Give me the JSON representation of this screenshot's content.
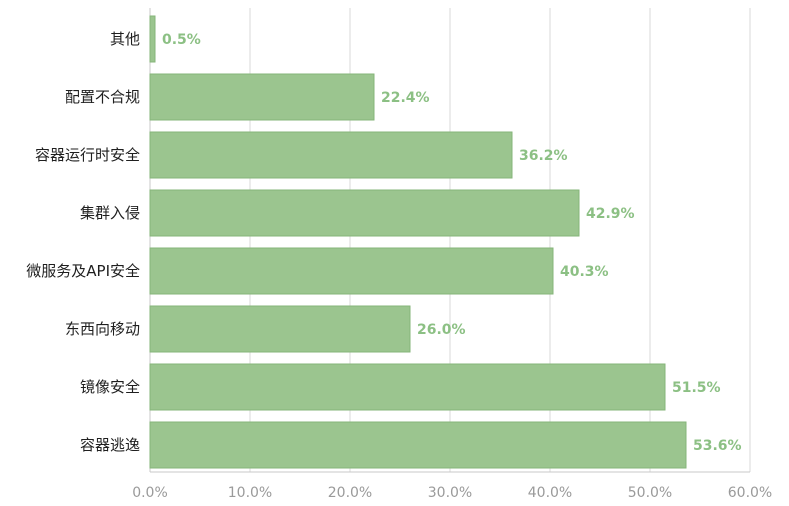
{
  "chart_data": {
    "type": "bar",
    "orientation": "horizontal",
    "categories": [
      "其他",
      "配置不合规",
      "容器运行时安全",
      "集群入侵",
      "微服务及API安全",
      "东西向移动",
      "镜像安全",
      "容器逃逸"
    ],
    "values": [
      0.5,
      22.4,
      36.2,
      42.9,
      40.3,
      26.0,
      51.5,
      53.6
    ],
    "value_labels": [
      "0.5%",
      "22.4%",
      "36.2%",
      "42.9%",
      "40.3%",
      "26.0%",
      "51.5%",
      "53.6%"
    ],
    "xlim": [
      0,
      60
    ],
    "xticks": [
      "0.0%",
      "10.0%",
      "20.0%",
      "30.0%",
      "40.0%",
      "50.0%",
      "60.0%"
    ],
    "grid": "vertical",
    "title": "",
    "xlabel": "",
    "ylabel": ""
  },
  "colors": {
    "bar_fill": "#9bc58f",
    "bar_stroke": "#86b57a",
    "value_text": "#8cc084",
    "grid": "#d9d9d9",
    "axis": "#c8c8c8"
  }
}
